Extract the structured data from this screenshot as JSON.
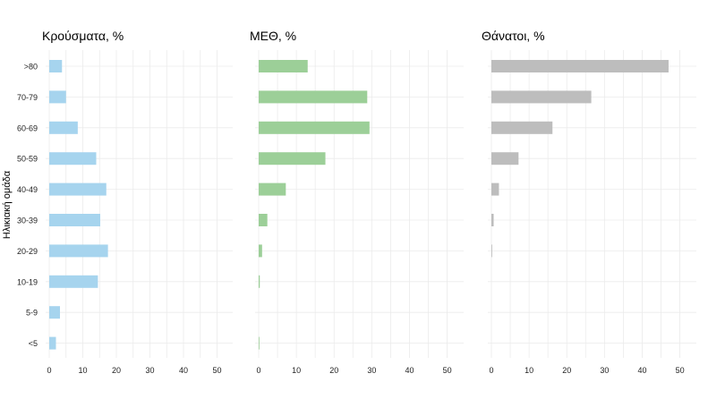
{
  "chart_data": {
    "type": "bar",
    "orientation": "horizontal",
    "ylabel": "Ηλικιακή ομάδα",
    "categories": [
      ">80",
      "70-79",
      "60-69",
      "50-59",
      "40-49",
      "30-39",
      "20-29",
      "10-19",
      "5-9",
      "<5"
    ],
    "xlim": [
      0,
      52
    ],
    "xticks": [
      0,
      10,
      20,
      30,
      40,
      50
    ],
    "grid": true,
    "panels": [
      {
        "title": "Κρούσματα, %",
        "color": "#a6d4ee",
        "values": [
          3.8,
          5.0,
          8.5,
          14.0,
          17.0,
          15.2,
          17.5,
          14.5,
          3.2,
          2.0
        ]
      },
      {
        "title": "ΜΕΘ, %",
        "color": "#9ccf98",
        "values": [
          13.0,
          28.8,
          29.4,
          17.7,
          7.2,
          2.3,
          0.9,
          0.3,
          0,
          0.1
        ]
      },
      {
        "title": "Θάνατοι, %",
        "color": "#bdbdbd",
        "values": [
          47.0,
          26.5,
          16.2,
          7.2,
          2.0,
          0.6,
          0.2,
          0,
          0,
          0
        ]
      }
    ]
  }
}
